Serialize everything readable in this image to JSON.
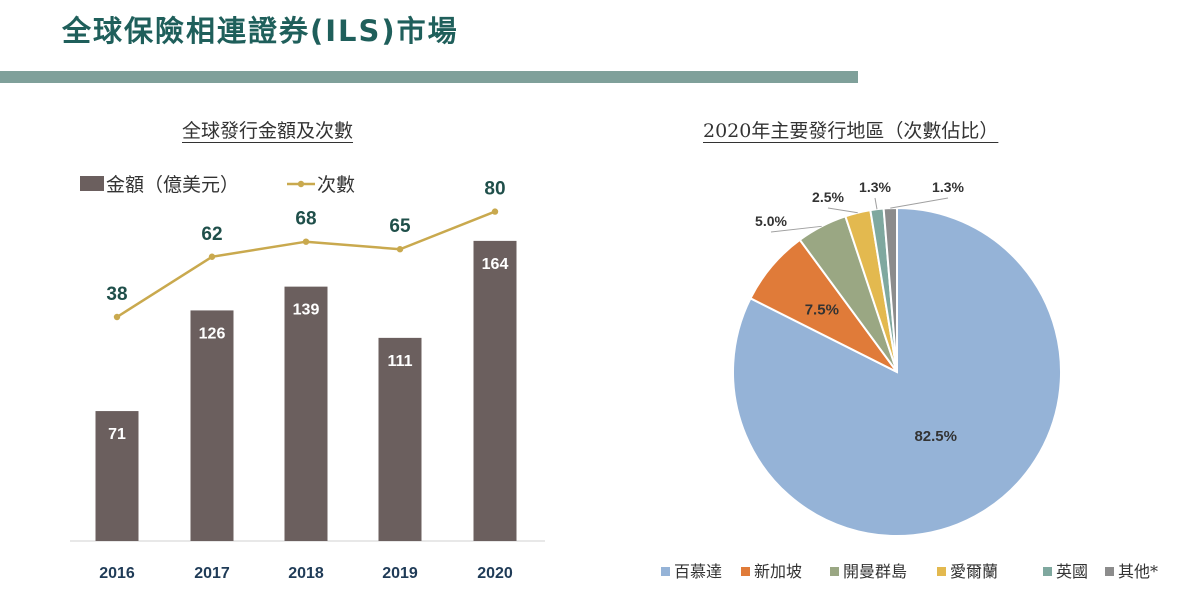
{
  "page": {
    "title": "全球保險相連證券(ILS)市場"
  },
  "chart_data": [
    {
      "type": "bar",
      "title": "全球發行金額及次數",
      "categories": [
        "2016",
        "2017",
        "2018",
        "2019",
        "2020"
      ],
      "series": [
        {
          "name": "金額（億美元）",
          "type": "bar",
          "values": [
            71,
            126,
            139,
            111,
            164
          ],
          "color": "#6b5f5e"
        },
        {
          "name": "次數",
          "type": "line",
          "values": [
            38,
            62,
            68,
            65,
            80
          ],
          "color": "#c9a94e"
        }
      ],
      "legend": "top-left",
      "grid": false
    },
    {
      "type": "pie",
      "title": "2020年主要發行地區（次數佔比）",
      "labels": [
        "百慕達",
        "新加坡",
        "開曼群島",
        "愛爾蘭",
        "英國",
        "其他*"
      ],
      "values": [
        82.5,
        7.5,
        5.0,
        2.5,
        1.3,
        1.3
      ],
      "value_labels": [
        "82.5%",
        "7.5%",
        "5.0%",
        "2.5%",
        "1.3%",
        "1.3%"
      ],
      "colors": [
        "#95b3d7",
        "#e07b39",
        "#9aa783",
        "#e3b94f",
        "#7fa89f",
        "#8c8c8c"
      ],
      "legend": "bottom"
    }
  ]
}
